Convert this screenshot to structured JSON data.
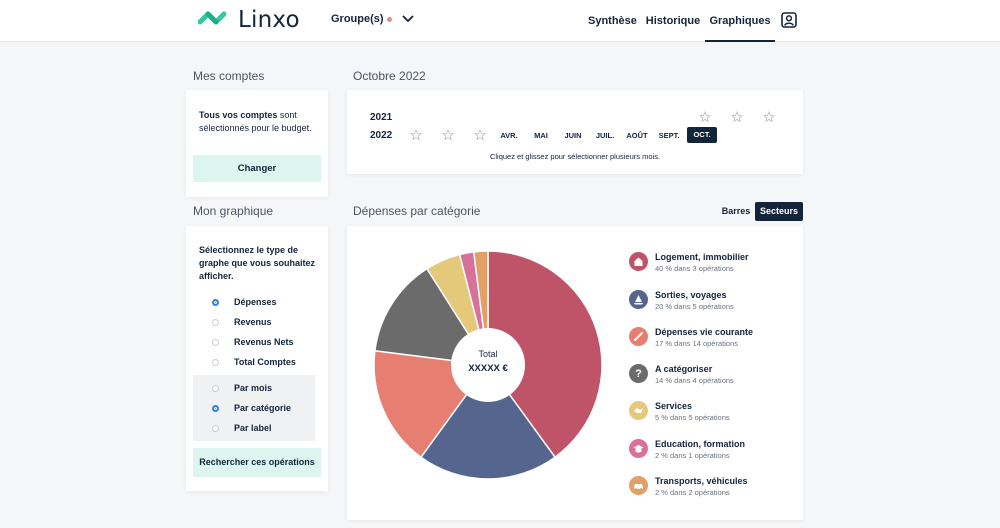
{
  "header": {
    "logo_text": "Linxo",
    "groupes_label": "Groupe(s)",
    "nav": [
      "Synthèse",
      "Historique",
      "Graphiques"
    ]
  },
  "comptes": {
    "title": "Mes comptes",
    "text_bold": "Tous vos comptes",
    "text_rest": " sont sélectionnés pour le budget.",
    "button": "Changer"
  },
  "graphique": {
    "title": "Mon graphique",
    "intro": "Sélectionnez le type de graphe que vous souhaitez afficher.",
    "types": [
      {
        "label": "Dépenses",
        "selected": true
      },
      {
        "label": "Revenus",
        "selected": false
      },
      {
        "label": "Revenus Nets",
        "selected": false
      },
      {
        "label": "Total Comptes",
        "selected": false
      }
    ],
    "groupings": [
      {
        "label": "Par mois",
        "selected": false
      },
      {
        "label": "Par catégorie",
        "selected": true
      },
      {
        "label": "Par label",
        "selected": false
      }
    ],
    "button": "Rechercher ces opérations"
  },
  "period": {
    "title": "Octobre 2022",
    "years": [
      "2021",
      "2022"
    ],
    "months": [
      "AVR.",
      "MAI",
      "JUIN",
      "JUIL.",
      "AOÛT",
      "SEPT.",
      "OCT."
    ],
    "selected_month": "OCT.",
    "hint": "Cliquez et glissez pour sélectionner plusieurs mois."
  },
  "depenses": {
    "title": "Dépenses par catégorie",
    "toggle": [
      "Barres",
      "Secteurs"
    ],
    "toggle_selected": "Secteurs",
    "total_label": "Total",
    "total_value": "XXXXX €"
  },
  "chart_data": {
    "type": "pie",
    "categories": [
      "Logement, immobilier",
      "Sorties, voyages",
      "Dépenses vie courante",
      "A catégoriser",
      "Services",
      "Education, formation",
      "Transports, véhicules"
    ],
    "values": [
      40,
      20,
      17,
      14,
      5,
      2,
      2
    ],
    "colors": [
      "#bf5469",
      "#56658d",
      "#e67f72",
      "#6b6b6b",
      "#e5c97a",
      "#d9709a",
      "#e0a066"
    ],
    "details": [
      "40 % dans 3 opérations",
      "20 % dans 5 opérations",
      "17 % dans 14 opérations",
      "14 % dans 4 opérations",
      "5 % dans 5 opérations",
      "2 % dans 1 opérations",
      "2 % dans 2 opérations"
    ],
    "icons": [
      "house-icon",
      "sailboat-icon",
      "cutlery-icon",
      "question-icon",
      "handshake-icon",
      "graduation-cap-icon",
      "car-icon"
    ]
  }
}
